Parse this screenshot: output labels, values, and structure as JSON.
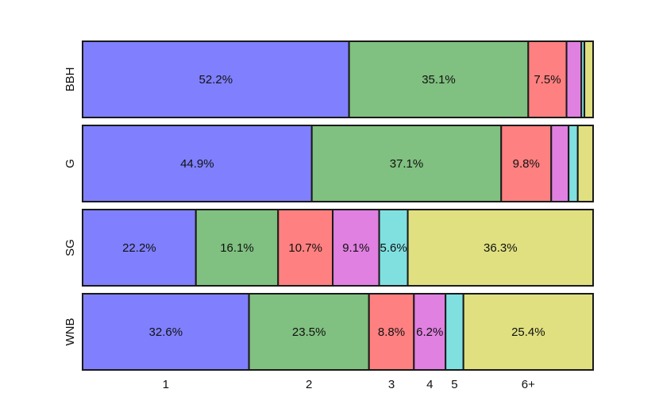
{
  "chart_data": {
    "type": "bar",
    "orientation": "horizontal",
    "stacked": true,
    "normalized": true,
    "categories": [
      "BBH",
      "G",
      "SG",
      "WNB"
    ],
    "bin_labels": [
      "1",
      "2",
      "3",
      "4",
      "5",
      "6+"
    ],
    "colors": [
      "#8080ff",
      "#80c080",
      "#ff8080",
      "#e080e0",
      "#80e0e0",
      "#e0e080"
    ],
    "tick_row": "WNB",
    "series": [
      {
        "name": "1",
        "values": [
          52.2,
          44.9,
          22.2,
          32.6
        ]
      },
      {
        "name": "2",
        "values": [
          35.1,
          37.1,
          16.1,
          23.5
        ]
      },
      {
        "name": "3",
        "values": [
          7.5,
          9.8,
          10.7,
          8.8
        ]
      },
      {
        "name": "4",
        "values": [
          2.9,
          3.4,
          9.1,
          6.2
        ]
      },
      {
        "name": "5",
        "values": [
          0.6,
          1.8,
          5.6,
          3.5
        ]
      },
      {
        "name": "6+",
        "values": [
          1.7,
          3.0,
          36.3,
          25.4
        ]
      }
    ],
    "data_labels": [
      [
        "52.2%",
        "35.1%",
        "7.5%",
        "",
        "",
        ""
      ],
      [
        "44.9%",
        "37.1%",
        "9.8%",
        "",
        "",
        ""
      ],
      [
        "22.2%",
        "16.1%",
        "10.7%",
        "9.1%",
        "5.6%",
        "36.3%"
      ],
      [
        "32.6%",
        "23.5%",
        "8.8%",
        "6.2%",
        "",
        "25.4%"
      ]
    ],
    "xlim": [
      0,
      100
    ],
    "grid": false,
    "legend": "none"
  }
}
